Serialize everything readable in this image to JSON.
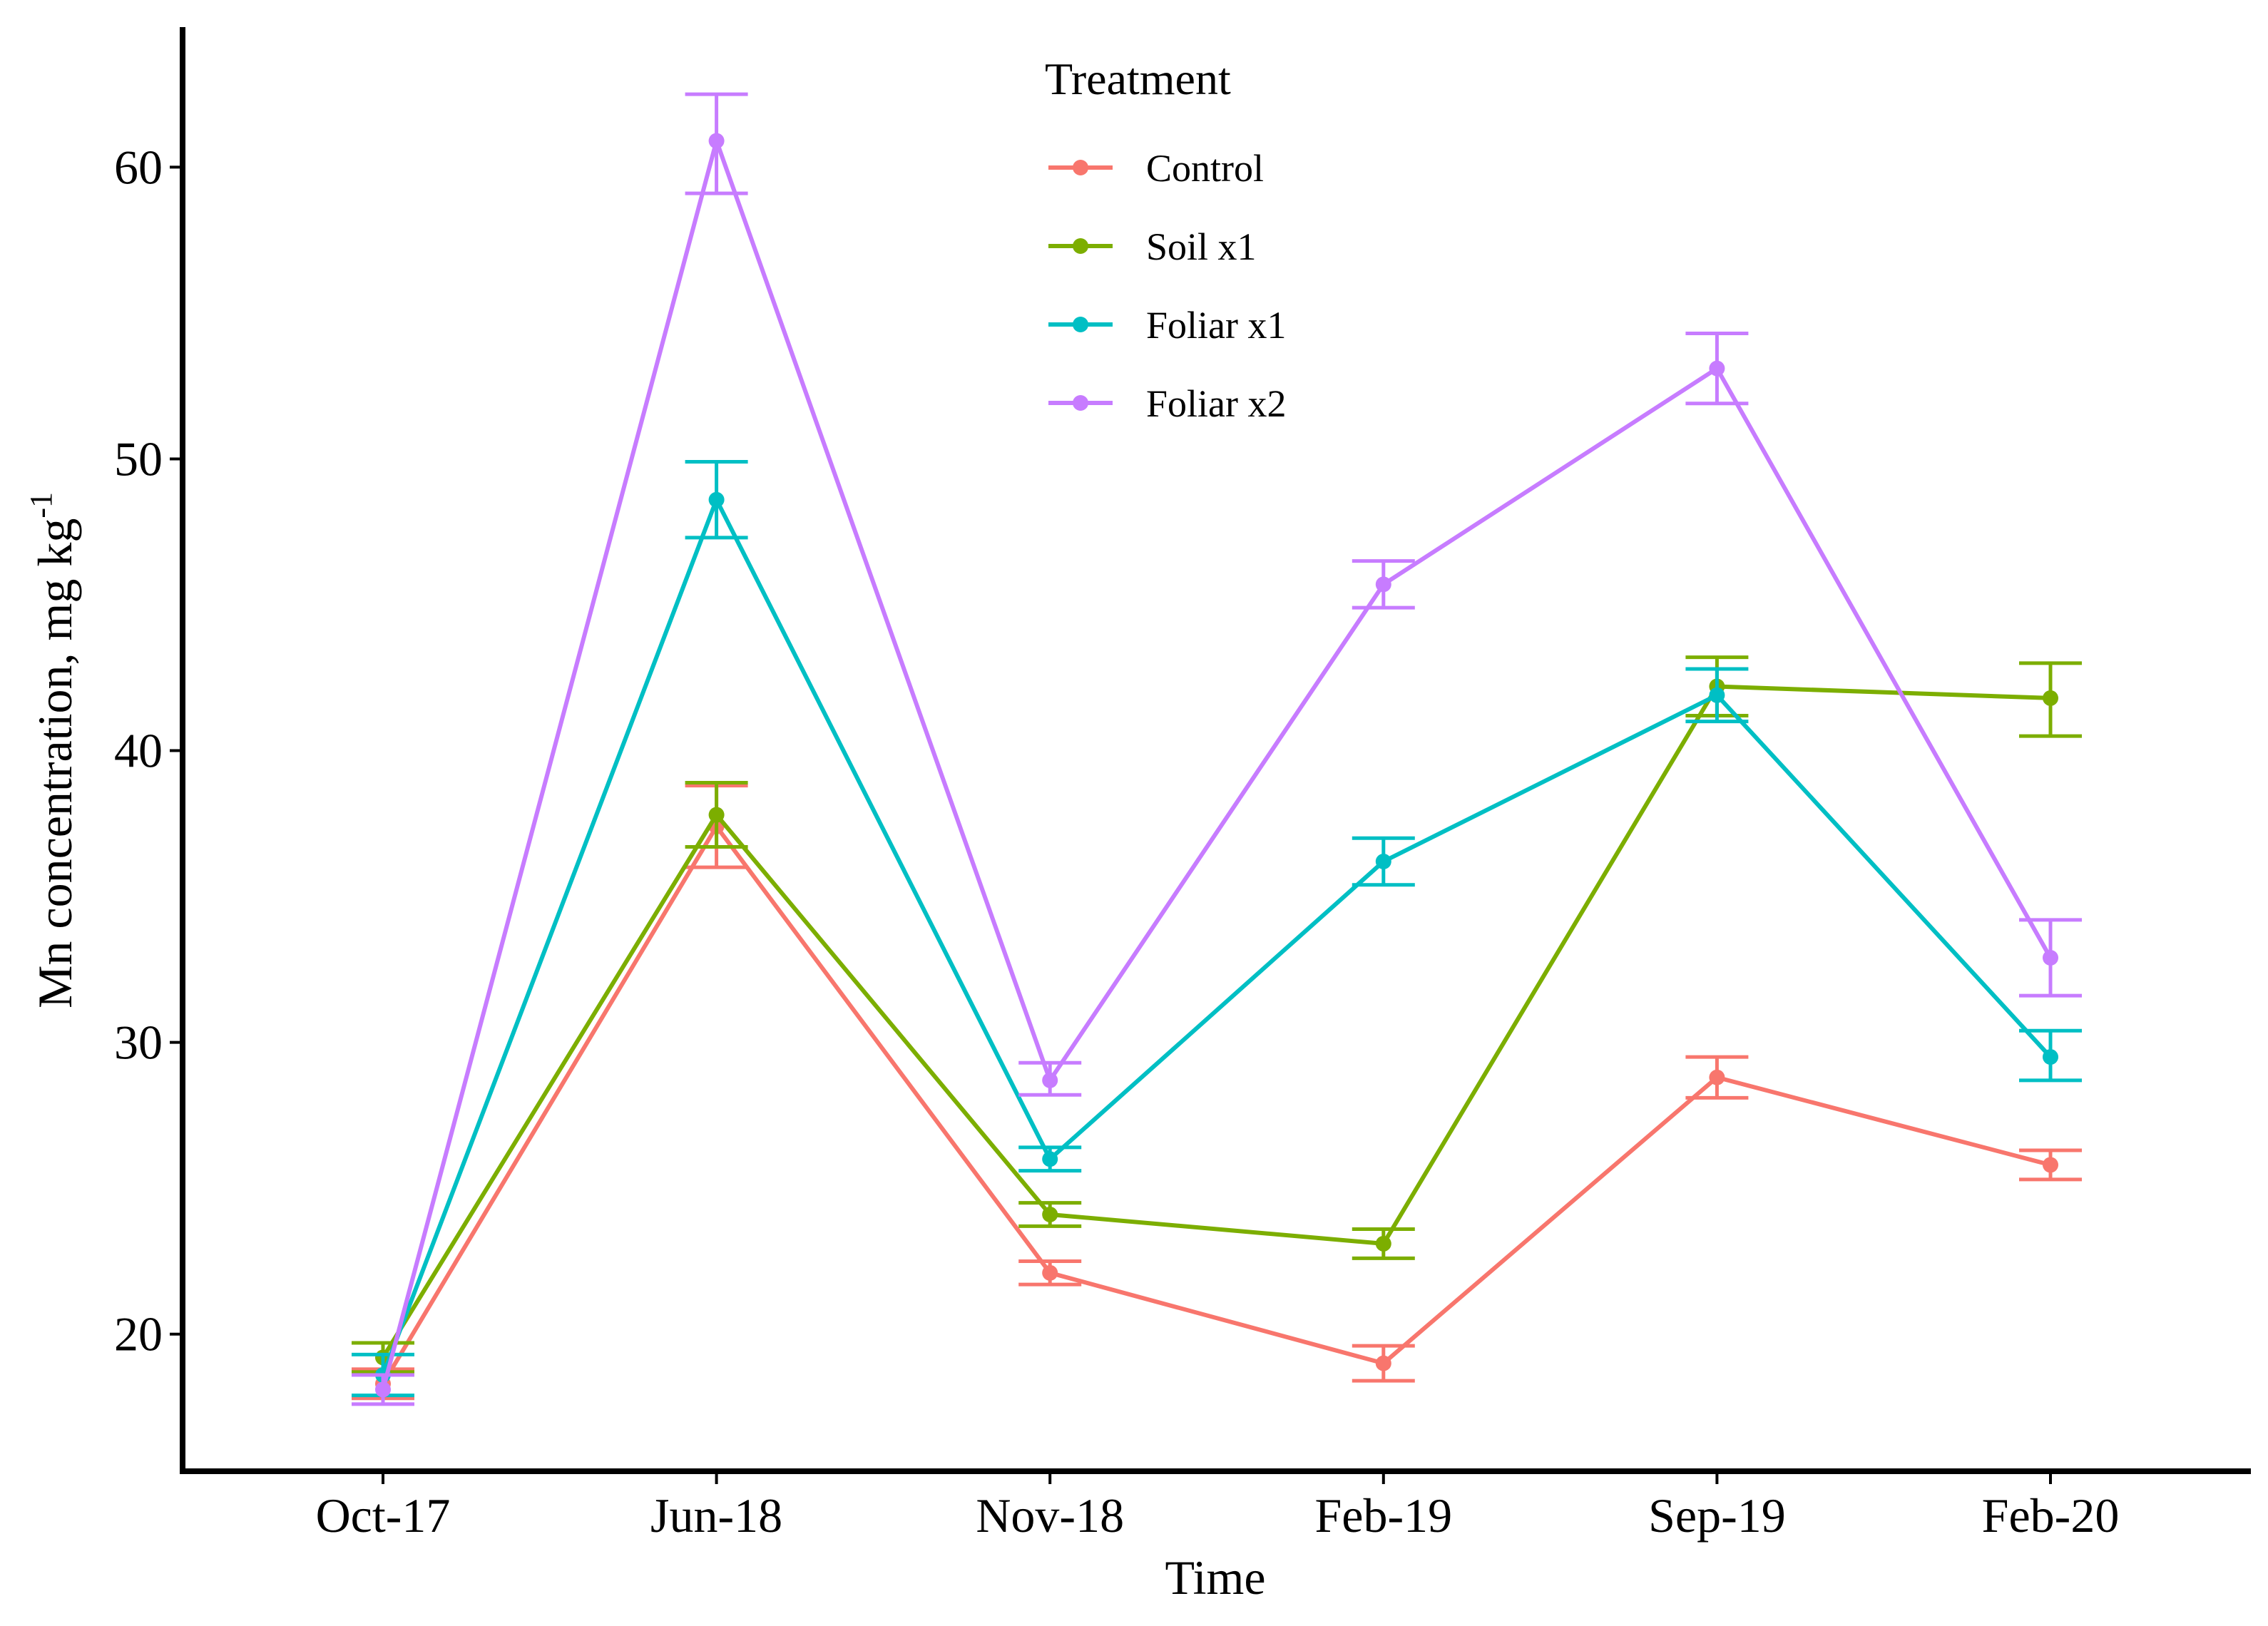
{
  "chart_data": {
    "type": "line",
    "title": "",
    "xlabel": "Time",
    "ylabel": "Mn concentration, mg kg",
    "ylabel_superscript": "-1",
    "categories": [
      "Oct-17",
      "Jun-18",
      "Nov-18",
      "Feb-19",
      "Sep-19",
      "Feb-20"
    ],
    "ylim": [
      15.3,
      64.8
    ],
    "yticks": [
      20,
      30,
      40,
      50,
      60
    ],
    "grid": false,
    "legend": {
      "title": "Treatment",
      "position": "top-center"
    },
    "error_bars": "mean ± error (lower/upper)",
    "series": [
      {
        "name": "Control",
        "color": "#F8766D",
        "values": [
          18.3,
          37.4,
          22.1,
          19.0,
          28.8,
          25.8
        ],
        "lower": [
          17.8,
          36.0,
          21.7,
          18.4,
          28.1,
          25.3
        ],
        "upper": [
          18.8,
          38.8,
          22.5,
          19.6,
          29.5,
          26.3
        ]
      },
      {
        "name": "Soil x1",
        "color": "#7CAE00",
        "values": [
          19.2,
          37.8,
          24.1,
          23.1,
          42.2,
          41.8
        ],
        "lower": [
          18.7,
          36.7,
          23.7,
          22.6,
          41.2,
          40.5
        ],
        "upper": [
          19.7,
          38.9,
          24.5,
          23.6,
          43.2,
          43.0
        ]
      },
      {
        "name": "Foliar x1",
        "color": "#00BFC4",
        "values": [
          18.6,
          48.6,
          26.0,
          36.2,
          41.9,
          29.5
        ],
        "lower": [
          17.9,
          47.3,
          25.6,
          35.4,
          41.0,
          28.7
        ],
        "upper": [
          19.3,
          49.9,
          26.4,
          37.0,
          42.8,
          30.4
        ]
      },
      {
        "name": "Foliar x2",
        "color": "#C77CFF",
        "values": [
          18.1,
          60.9,
          28.7,
          45.7,
          53.1,
          32.9
        ],
        "lower": [
          17.6,
          59.1,
          28.2,
          44.9,
          51.9,
          31.6
        ],
        "upper": [
          18.6,
          62.5,
          29.3,
          46.5,
          54.3,
          34.2
        ]
      }
    ]
  }
}
